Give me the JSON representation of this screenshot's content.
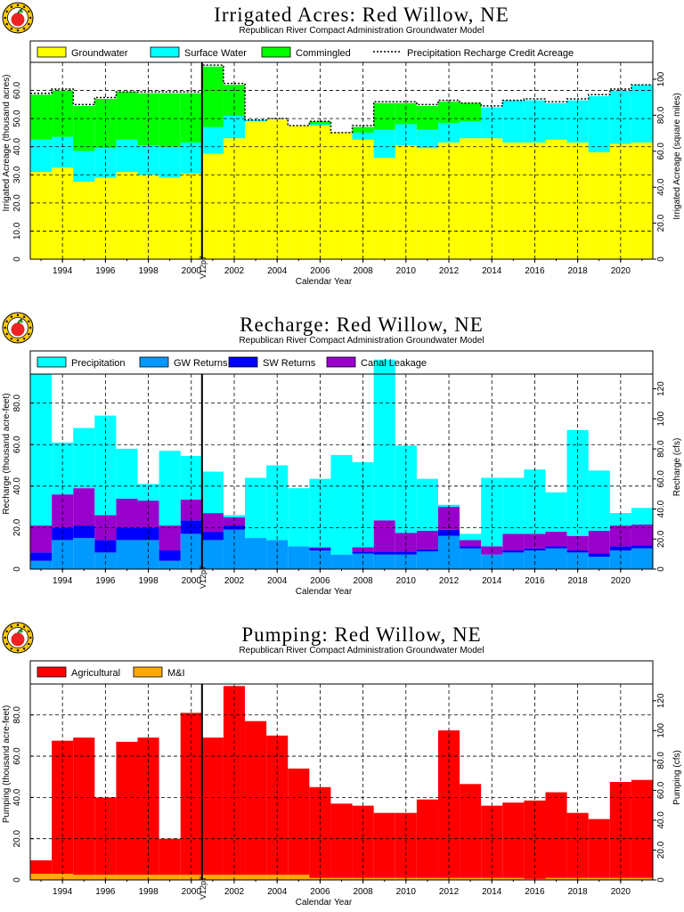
{
  "colors": {
    "groundwater": "#ffff00",
    "surface_water": "#00ffff",
    "commingled": "#00ff00",
    "precipitation": "#00ffff",
    "gw_returns": "#0099ff",
    "sw_returns": "#0000ff",
    "canal_leakage": "#9900cc",
    "agricultural": "#ff0000",
    "mi": "#ffaa00",
    "apple": "#ee2222",
    "logo_ring": "#ffcc00"
  },
  "chart_data": [
    {
      "type": "bar",
      "stacked": true,
      "title": "Irrigated Acres: Red Willow, NE",
      "subtitle": "Republican River Compact Administration Groundwater Model",
      "xlabel": "Calendar Year",
      "ylabel": "Irrigated Acreage (thousand acres)",
      "y2label": "Irrigated Acreage (square miles)",
      "xlim": [
        1992.5,
        2021.5
      ],
      "ylim": [
        0,
        70
      ],
      "y2lim": [
        0,
        109.4
      ],
      "yticks": [
        0,
        10,
        20,
        30,
        40,
        50,
        60
      ],
      "ytick_labels": [
        "0",
        "10.0",
        "20.0",
        "30.0",
        "40.0",
        "50.0",
        "60.0"
      ],
      "y2ticks": [
        0,
        20,
        40,
        60,
        80,
        100
      ],
      "y2tick_labels": [
        "0",
        "20.0",
        "40.0",
        "60.0",
        "80.0",
        "100"
      ],
      "xticks": [
        1994,
        1996,
        1998,
        2000,
        2002,
        2004,
        2006,
        2008,
        2010,
        2012,
        2014,
        2016,
        2018,
        2020
      ],
      "grid": true,
      "legend_position": "top",
      "vline": {
        "x": 2000.5,
        "label": "V12p7"
      },
      "years": [
        1993,
        1994,
        1995,
        1996,
        1997,
        1998,
        1999,
        2000,
        2001,
        2002,
        2003,
        2004,
        2005,
        2006,
        2007,
        2008,
        2009,
        2010,
        2011,
        2012,
        2013,
        2014,
        2015,
        2016,
        2017,
        2018,
        2019,
        2020,
        2021
      ],
      "series": [
        {
          "name": "Groundwater",
          "color_key": "groundwater",
          "values": [
            31.0,
            32.5,
            27.5,
            29.0,
            31.0,
            30.0,
            29.0,
            30.5,
            37.5,
            43.0,
            49.0,
            49.5,
            47.5,
            47.5,
            45.0,
            42.5,
            36.0,
            40.5,
            39.5,
            41.5,
            43.0,
            43.0,
            41.5,
            41.5,
            42.5,
            41.5,
            38.0,
            41.0,
            41.5
          ]
        },
        {
          "name": "Surface Water",
          "color_key": "surface_water",
          "values": [
            11.5,
            11.0,
            11.0,
            10.5,
            11.5,
            10.5,
            11.0,
            11.0,
            9.5,
            8.0,
            0.5,
            0,
            0,
            0.5,
            0,
            2.5,
            10.0,
            7.5,
            6.5,
            7.0,
            6.0,
            11.0,
            15.0,
            15.0,
            13.0,
            15.0,
            20.0,
            19.0,
            20.5
          ]
        },
        {
          "name": "Commingled",
          "color_key": "commingled",
          "values": [
            16.0,
            16.5,
            16.0,
            17.5,
            17.0,
            18.5,
            19.0,
            17.5,
            21.5,
            11.0,
            0,
            0,
            0,
            1.0,
            0,
            2.0,
            9.5,
            7.5,
            8.5,
            7.5,
            6.5,
            0,
            0,
            0,
            0,
            0,
            0,
            0,
            0
          ]
        }
      ],
      "line_series": {
        "name": "Precipitation Recharge Credit Acreage",
        "style": "dashed",
        "values": [
          59.0,
          60.5,
          55.0,
          57.5,
          59.5,
          59.5,
          59.5,
          59.5,
          69.0,
          62.5,
          49.5,
          50.0,
          47.5,
          49.0,
          45.0,
          47.5,
          56.0,
          56.0,
          55.0,
          56.5,
          55.5,
          54.5,
          56.5,
          57.0,
          56.0,
          57.0,
          58.5,
          60.5,
          62.0
        ]
      }
    },
    {
      "type": "bar",
      "stacked": true,
      "title": "Recharge: Red Willow, NE",
      "subtitle": "Republican River Compact Administration Groundwater Model",
      "xlabel": "Calendar Year",
      "ylabel": "Recharge (thousand acre-feet)",
      "y2label": "Recharge (cfs)",
      "xlim": [
        1992.5,
        2021.5
      ],
      "ylim": [
        0,
        94
      ],
      "y2lim": [
        0,
        129.8
      ],
      "yticks": [
        0,
        20,
        40,
        60,
        80
      ],
      "ytick_labels": [
        "0",
        "20.0",
        "40.0",
        "60.0",
        "80.0"
      ],
      "y2ticks": [
        0,
        20,
        40,
        60,
        80,
        100,
        120
      ],
      "y2tick_labels": [
        "0",
        "20.0",
        "40.0",
        "60.0",
        "80.0",
        "100",
        "120"
      ],
      "xticks": [
        1994,
        1996,
        1998,
        2000,
        2002,
        2004,
        2006,
        2008,
        2010,
        2012,
        2014,
        2016,
        2018,
        2020
      ],
      "grid": true,
      "legend_position": "top",
      "vline": {
        "x": 2000.5,
        "label": "V12p7"
      },
      "years": [
        1993,
        1994,
        1995,
        1996,
        1997,
        1998,
        1999,
        2000,
        2001,
        2002,
        2003,
        2004,
        2005,
        2006,
        2007,
        2008,
        2009,
        2010,
        2011,
        2012,
        2013,
        2014,
        2015,
        2016,
        2017,
        2018,
        2019,
        2020,
        2021
      ],
      "series": [
        {
          "name": "GW Returns",
          "color_key": "gw_returns",
          "values": [
            4.0,
            14.0,
            15.0,
            8.0,
            14.0,
            14.0,
            4.0,
            17.0,
            14.0,
            19.0,
            15.0,
            14.0,
            11.0,
            9.0,
            7.0,
            7.5,
            7.0,
            7.0,
            8.5,
            16.0,
            10.0,
            7.0,
            8.0,
            9.0,
            10.0,
            8.0,
            6.0,
            9.0,
            10.0
          ]
        },
        {
          "name": "SW Returns",
          "color_key": "sw_returns",
          "values": [
            4.0,
            6.0,
            6.0,
            6.0,
            6.0,
            6.0,
            5.0,
            6.5,
            4.0,
            2.0,
            0,
            0,
            0,
            1.0,
            0,
            1.0,
            1.5,
            1.5,
            1.0,
            3.0,
            1.0,
            0,
            1.0,
            1.0,
            1.0,
            1.0,
            1.5,
            2.0,
            1.5
          ]
        },
        {
          "name": "Canal Leakage",
          "color_key": "canal_leakage",
          "values": [
            13.0,
            16.0,
            18.0,
            12.0,
            14.0,
            13.0,
            12.0,
            10.0,
            9.0,
            4.0,
            0,
            0,
            0,
            0.5,
            0,
            2.0,
            15.0,
            9.0,
            9.0,
            11.0,
            3.0,
            4.0,
            8.0,
            7.0,
            7.0,
            7.0,
            11.0,
            10.0,
            10.0
          ]
        },
        {
          "name": "Precipitation",
          "color_key": "precipitation",
          "values": [
            73.0,
            25.0,
            29.0,
            48.0,
            24.0,
            8.0,
            36.0,
            21.0,
            20.0,
            1.0,
            29.0,
            36.0,
            28.0,
            33.0,
            48.0,
            41.0,
            77.5,
            42.0,
            25.0,
            1.0,
            3.0,
            33.0,
            27.0,
            31.0,
            19.0,
            51.0,
            29.0,
            6.0,
            8.0
          ]
        }
      ]
    },
    {
      "type": "bar",
      "stacked": true,
      "title": "Pumping: Red Willow, NE",
      "subtitle": "Republican River Compact Administration Groundwater Model",
      "xlabel": "Calendar Year",
      "ylabel": "Pumping (thousand acre-feet)",
      "y2label": "Pumping (cfs)",
      "xlim": [
        1992.5,
        2021.5
      ],
      "ylim": [
        0,
        95
      ],
      "y2lim": [
        0,
        131.2
      ],
      "yticks": [
        0,
        20,
        40,
        60,
        80
      ],
      "ytick_labels": [
        "0",
        "20.0",
        "40.0",
        "60.0",
        "80.0"
      ],
      "y2ticks": [
        0,
        20,
        40,
        60,
        80,
        100,
        120
      ],
      "y2tick_labels": [
        "0",
        "20.0",
        "40.0",
        "60.0",
        "80.0",
        "100",
        "120"
      ],
      "xticks": [
        1994,
        1996,
        1998,
        2000,
        2002,
        2004,
        2006,
        2008,
        2010,
        2012,
        2014,
        2016,
        2018,
        2020
      ],
      "grid": true,
      "legend_position": "top",
      "vline": {
        "x": 2000.5,
        "label": "V12p7"
      },
      "years": [
        1993,
        1994,
        1995,
        1996,
        1997,
        1998,
        1999,
        2000,
        2001,
        2002,
        2003,
        2004,
        2005,
        2006,
        2007,
        2008,
        2009,
        2010,
        2011,
        2012,
        2013,
        2014,
        2015,
        2016,
        2017,
        2018,
        2019,
        2020,
        2021
      ],
      "series": [
        {
          "name": "M&I",
          "color_key": "mi",
          "values": [
            3.0,
            3.0,
            2.5,
            2.5,
            2.5,
            2.5,
            2.5,
            2.5,
            2.5,
            2.5,
            2.5,
            2.5,
            2.5,
            1.0,
            1.0,
            1.0,
            1.0,
            1.0,
            1.0,
            1.0,
            1.0,
            1.0,
            1.0,
            0.5,
            1.0,
            1.0,
            1.0,
            1.0,
            1.0
          ]
        },
        {
          "name": "Agricultural",
          "color_key": "agricultural",
          "values": [
            6.5,
            64.5,
            66.5,
            37.5,
            64.5,
            66.5,
            17.5,
            78.5,
            66.5,
            91.5,
            74.5,
            67.5,
            51.5,
            44.0,
            36.0,
            35.0,
            31.5,
            31.5,
            38.0,
            71.5,
            45.5,
            35.0,
            36.5,
            38.0,
            41.5,
            31.5,
            28.5,
            46.5,
            47.5
          ]
        }
      ]
    }
  ]
}
